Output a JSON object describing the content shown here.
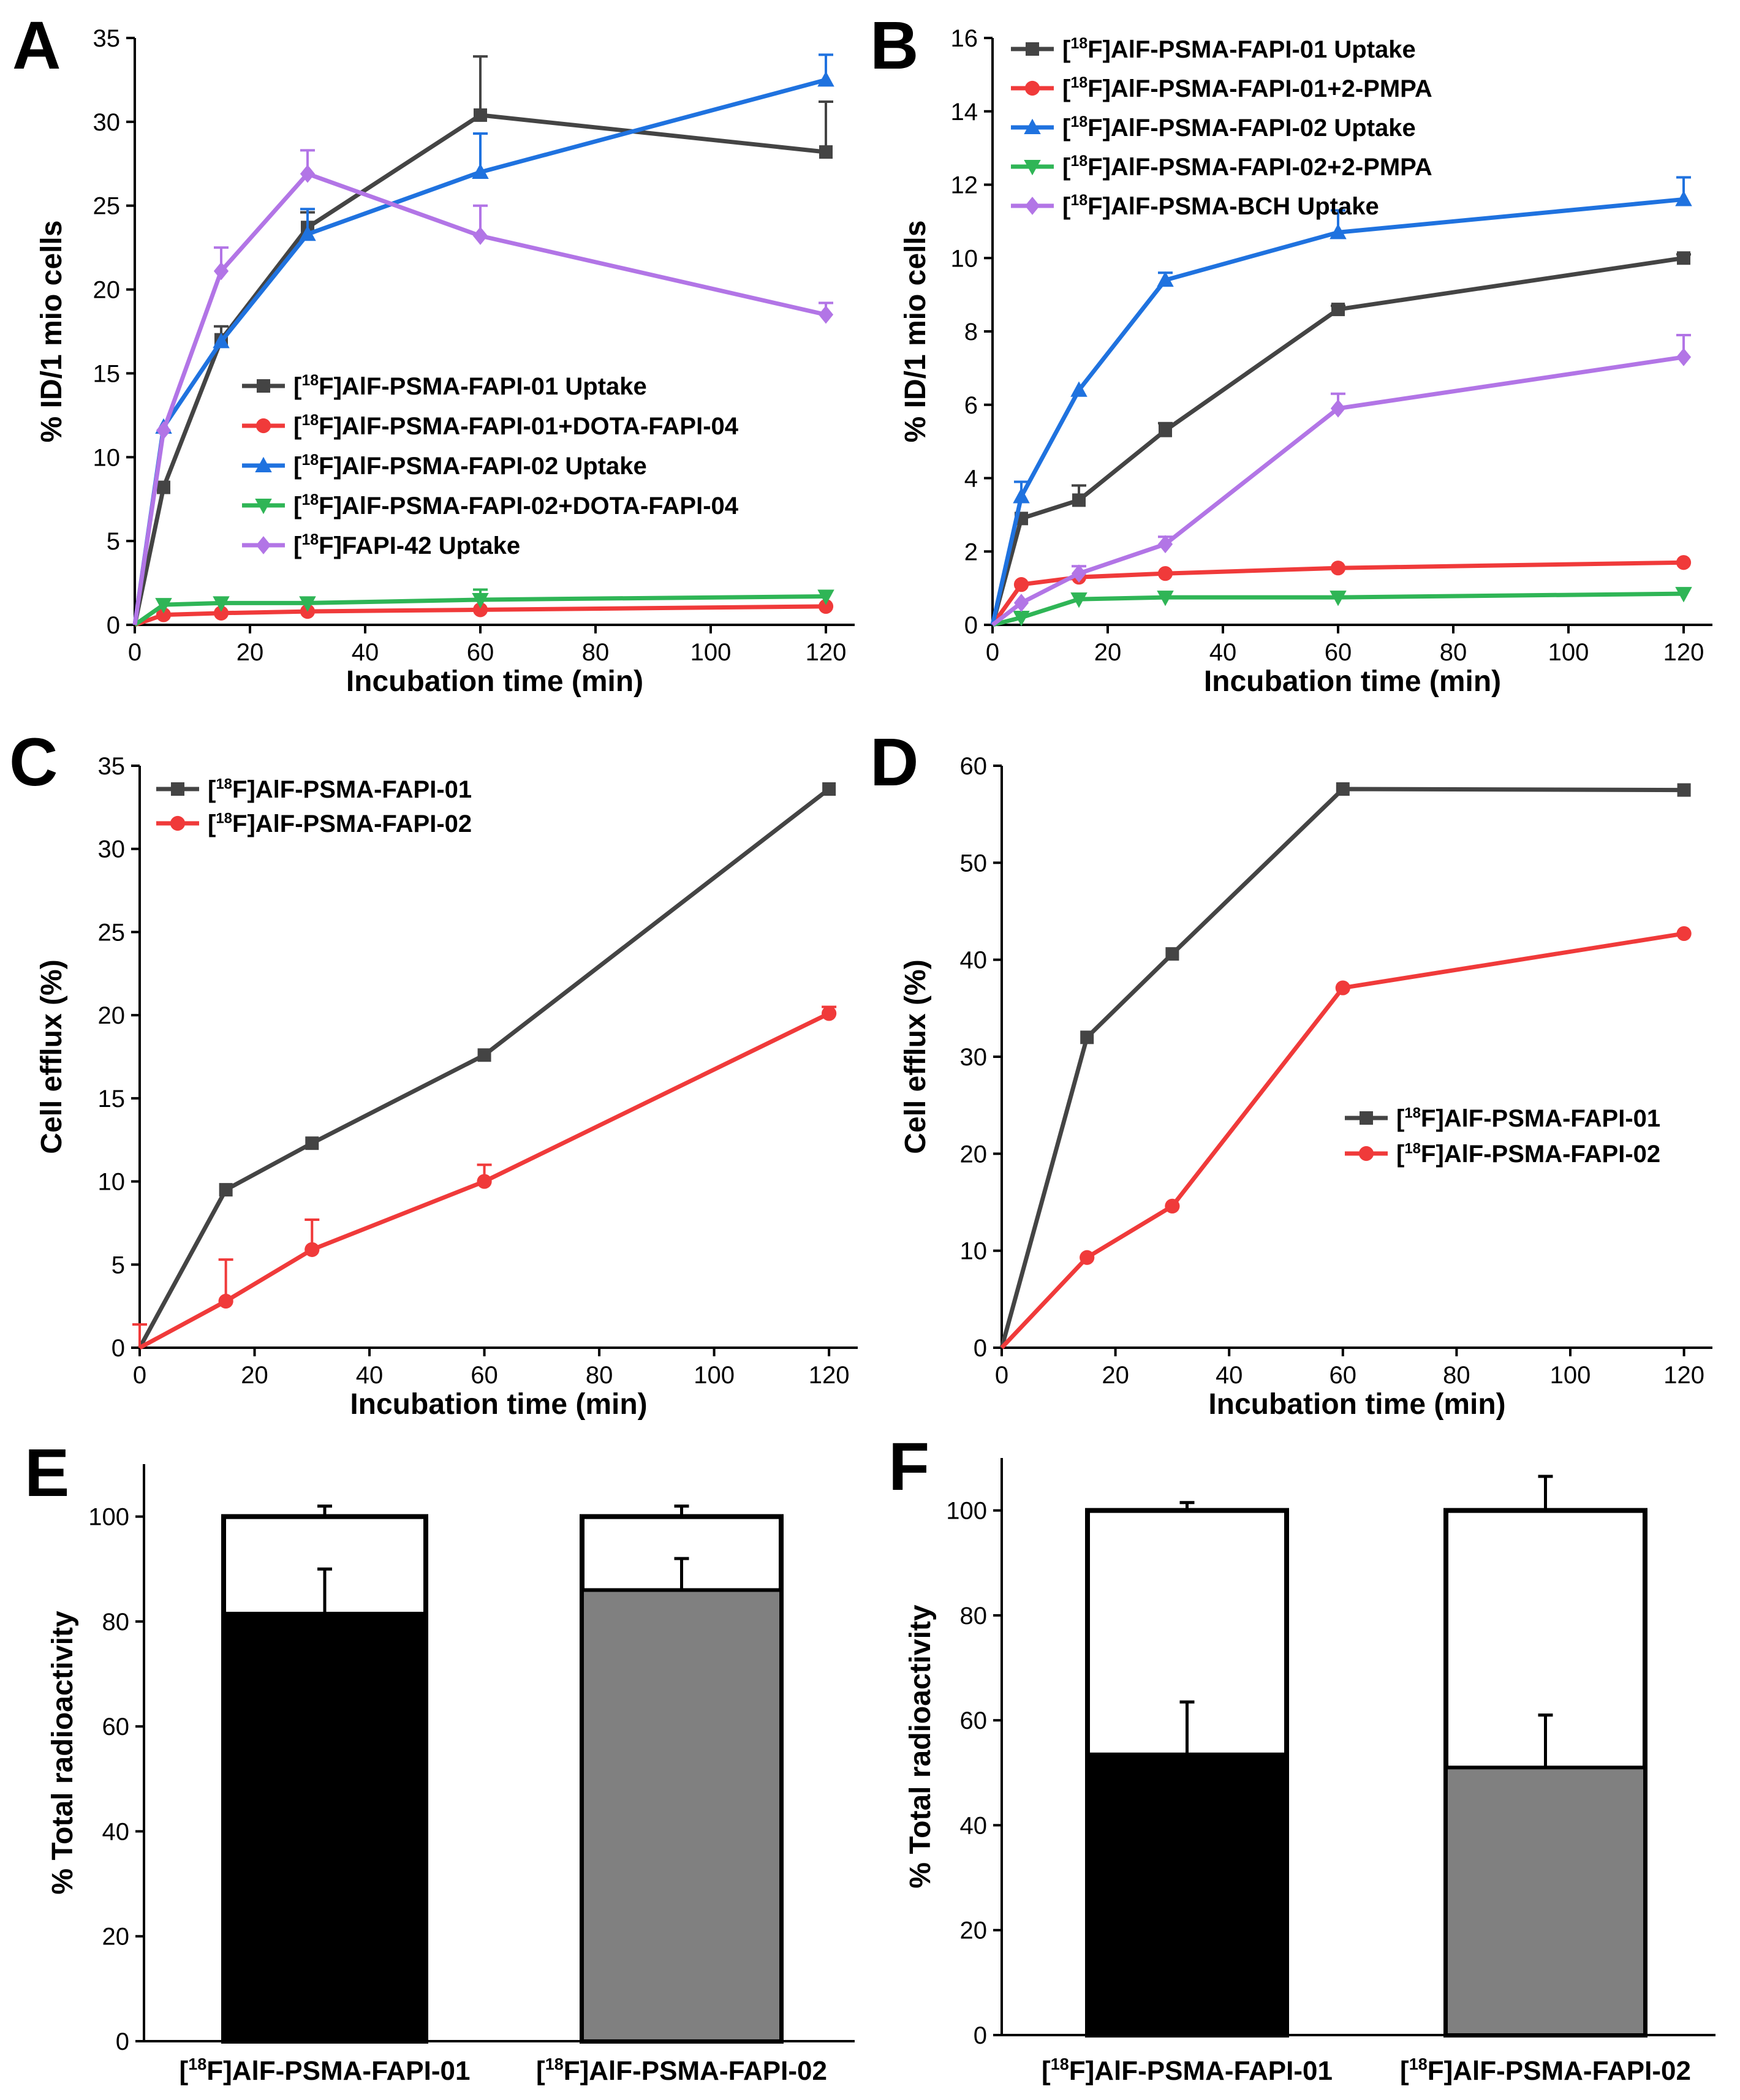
{
  "chart_data": [
    {
      "id": "A",
      "panel_label": "A",
      "type": "line",
      "xlabel": "Incubation time (min)",
      "ylabel": "% ID/1 mio cells",
      "xlim": [
        0,
        125
      ],
      "ylim": [
        0,
        35
      ],
      "xticks": [
        0,
        20,
        40,
        60,
        80,
        100,
        120
      ],
      "yticks": [
        0,
        5,
        10,
        15,
        20,
        25,
        30,
        35
      ],
      "legend_position": "center",
      "series": [
        {
          "prefix": "[",
          "sup": "18",
          "name": "F]AlF-PSMA-FAPI-01 Uptake",
          "color": "#444444",
          "marker": "square",
          "x": [
            0,
            5,
            15,
            30,
            60,
            120
          ],
          "y": [
            0,
            8.2,
            17.0,
            23.7,
            30.4,
            28.2
          ],
          "err": [
            0,
            0,
            0.8,
            0.9,
            3.5,
            3.0
          ]
        },
        {
          "prefix": "[",
          "sup": "18",
          "name": "F]AlF-PSMA-FAPI-01+DOTA-FAPI-04",
          "color": "#f03a3a",
          "marker": "circle",
          "x": [
            0,
            5,
            15,
            30,
            60,
            120
          ],
          "y": [
            0,
            0.6,
            0.7,
            0.8,
            0.9,
            1.1
          ],
          "err": [
            0,
            0,
            0,
            0,
            0,
            0
          ]
        },
        {
          "prefix": "[",
          "sup": "18",
          "name": "F]AlF-PSMA-FAPI-02 Uptake",
          "color": "#1f72df",
          "marker": "triangle-up",
          "x": [
            0,
            5,
            15,
            30,
            60,
            120
          ],
          "y": [
            0,
            11.8,
            16.9,
            23.3,
            27.0,
            32.5
          ],
          "err": [
            0,
            0,
            0,
            1.5,
            2.3,
            1.5
          ]
        },
        {
          "prefix": "[",
          "sup": "18",
          "name": "F]AlF-PSMA-FAPI-02+DOTA-FAPI-04",
          "color": "#2fb556",
          "marker": "triangle-down",
          "x": [
            0,
            5,
            15,
            30,
            60,
            120
          ],
          "y": [
            0,
            1.2,
            1.3,
            1.3,
            1.5,
            1.7
          ],
          "err": [
            0,
            0,
            0,
            0,
            0.6,
            0
          ]
        },
        {
          "prefix": "[",
          "sup": "18",
          "name": "F]FAPI-42 Uptake",
          "color": "#b275e6",
          "marker": "diamond",
          "x": [
            0,
            5,
            15,
            30,
            60,
            120
          ],
          "y": [
            0,
            11.6,
            21.1,
            26.9,
            23.2,
            18.5
          ],
          "err": [
            0,
            0,
            1.4,
            1.4,
            1.8,
            0.7
          ]
        }
      ]
    },
    {
      "id": "B",
      "panel_label": "B",
      "type": "line",
      "xlabel": "Incubation time (min)",
      "ylabel": "% ID/1 mio cells",
      "xlim": [
        0,
        125
      ],
      "ylim": [
        0,
        16
      ],
      "xticks": [
        0,
        20,
        40,
        60,
        80,
        100,
        120
      ],
      "yticks": [
        0,
        2,
        4,
        6,
        8,
        10,
        12,
        14,
        16
      ],
      "legend_position": "top-left",
      "series": [
        {
          "prefix": "[",
          "sup": "18",
          "name": "F]AlF-PSMA-FAPI-01 Uptake",
          "color": "#444444",
          "marker": "square",
          "x": [
            0,
            5,
            15,
            30,
            60,
            120
          ],
          "y": [
            0,
            2.9,
            3.4,
            5.3,
            8.6,
            10.0
          ],
          "err": [
            0,
            0,
            0.4,
            0.2,
            0.1,
            0.1
          ]
        },
        {
          "prefix": "[",
          "sup": "18",
          "name": "F]AlF-PSMA-FAPI-01+2-PMPA",
          "color": "#f03a3a",
          "marker": "circle",
          "x": [
            0,
            5,
            15,
            30,
            60,
            120
          ],
          "y": [
            0,
            1.1,
            1.3,
            1.4,
            1.55,
            1.7
          ],
          "err": [
            0,
            0,
            0,
            0,
            0,
            0
          ]
        },
        {
          "prefix": "[",
          "sup": "18",
          "name": "F]AlF-PSMA-FAPI-02 Uptake",
          "color": "#1f72df",
          "marker": "triangle-up",
          "x": [
            0,
            5,
            15,
            30,
            60,
            120
          ],
          "y": [
            0,
            3.5,
            6.4,
            9.4,
            10.7,
            11.6
          ],
          "err": [
            0,
            0.4,
            0,
            0.2,
            0.6,
            0.6
          ]
        },
        {
          "prefix": "[",
          "sup": "18",
          "name": "F]AlF-PSMA-FAPI-02+2-PMPA",
          "color": "#2fb556",
          "marker": "triangle-down",
          "x": [
            0,
            5,
            15,
            30,
            60,
            120
          ],
          "y": [
            0,
            0.2,
            0.7,
            0.75,
            0.75,
            0.85
          ],
          "err": [
            0,
            0,
            0,
            0,
            0,
            0
          ]
        },
        {
          "prefix": "[",
          "sup": "18",
          "name": "F]AlF-PSMA-BCH Uptake",
          "color": "#b275e6",
          "marker": "diamond",
          "x": [
            0,
            5,
            15,
            30,
            60,
            120
          ],
          "y": [
            0,
            0.6,
            1.4,
            2.2,
            5.9,
            7.3
          ],
          "err": [
            0,
            0,
            0.2,
            0.2,
            0.4,
            0.6
          ]
        }
      ]
    },
    {
      "id": "C",
      "panel_label": "C",
      "type": "line",
      "xlabel": "Incubation time (min)",
      "ylabel": "Cell efflux (%)",
      "xlim": [
        0,
        125
      ],
      "ylim": [
        0,
        35
      ],
      "xticks": [
        0,
        20,
        40,
        60,
        80,
        100,
        120
      ],
      "yticks": [
        0,
        5,
        10,
        15,
        20,
        25,
        30,
        35
      ],
      "legend_position": "top-left",
      "series": [
        {
          "prefix": "[",
          "sup": "18",
          "name": "F]AlF-PSMA-FAPI-01",
          "color": "#444444",
          "marker": "square",
          "x": [
            0,
            15,
            30,
            60,
            120
          ],
          "y": [
            0,
            9.5,
            12.3,
            17.6,
            33.6
          ],
          "err": [
            0,
            0,
            0,
            0,
            0
          ]
        },
        {
          "prefix": "[",
          "sup": "18",
          "name": "F]AlF-PSMA-FAPI-02",
          "color": "#f03a3a",
          "marker": "circle",
          "x": [
            0,
            15,
            30,
            60,
            120
          ],
          "y": [
            0,
            2.8,
            5.9,
            10.0,
            20.1
          ],
          "err": [
            1.4,
            2.5,
            1.8,
            1.0,
            0.4
          ]
        }
      ]
    },
    {
      "id": "D",
      "panel_label": "D",
      "type": "line",
      "xlabel": "Incubation time (min)",
      "ylabel": "Cell efflux (%)",
      "xlim": [
        0,
        125
      ],
      "ylim": [
        0,
        60
      ],
      "xticks": [
        0,
        20,
        40,
        60,
        80,
        100,
        120
      ],
      "yticks": [
        0,
        10,
        20,
        30,
        40,
        50,
        60
      ],
      "legend_position": "center-right",
      "series": [
        {
          "prefix": "[",
          "sup": "18",
          "name": "F]AlF-PSMA-FAPI-01",
          "color": "#444444",
          "marker": "square",
          "x": [
            0,
            15,
            30,
            60,
            120
          ],
          "y": [
            0,
            32.0,
            40.6,
            57.6,
            57.5
          ],
          "err": [
            0,
            0,
            0,
            0,
            0
          ]
        },
        {
          "prefix": "[",
          "sup": "18",
          "name": "F]AlF-PSMA-FAPI-02",
          "color": "#f03a3a",
          "marker": "circle",
          "x": [
            0,
            15,
            30,
            60,
            120
          ],
          "y": [
            0,
            9.3,
            14.6,
            37.1,
            42.7
          ],
          "err": [
            0,
            0,
            0,
            0,
            0
          ]
        }
      ]
    },
    {
      "id": "E",
      "panel_label": "E",
      "type": "bar",
      "ylabel": "% Total radioactivity",
      "ylim": [
        0,
        110
      ],
      "yticks": [
        0,
        20,
        40,
        60,
        80,
        100
      ],
      "categories": [
        {
          "prefix": "[",
          "sup": "18",
          "name": "F]AlF-PSMA-FAPI-01"
        },
        {
          "prefix": "[",
          "sup": "18",
          "name": "F]AlF-PSMA-FAPI-02"
        }
      ],
      "fill_colors": [
        "#000000",
        "#808080"
      ],
      "total": [
        100,
        100
      ],
      "total_err": [
        2,
        2
      ],
      "values": [
        81.5,
        86.0
      ],
      "values_err": [
        8.5,
        6.0
      ]
    },
    {
      "id": "F",
      "panel_label": "F",
      "type": "bar",
      "ylabel": "% Total radioactivity",
      "ylim": [
        0,
        110
      ],
      "yticks": [
        0,
        20,
        40,
        60,
        80,
        100
      ],
      "categories": [
        {
          "prefix": "[",
          "sup": "18",
          "name": "F]AlF-PSMA-FAPI-01"
        },
        {
          "prefix": "[",
          "sup": "18",
          "name": "F]AlF-PSMA-FAPI-02"
        }
      ],
      "fill_colors": [
        "#000000",
        "#808080"
      ],
      "total": [
        100,
        100
      ],
      "total_err": [
        1.5,
        6.5
      ],
      "values": [
        53.5,
        51.0
      ],
      "values_err": [
        10.0,
        10.0
      ]
    }
  ]
}
